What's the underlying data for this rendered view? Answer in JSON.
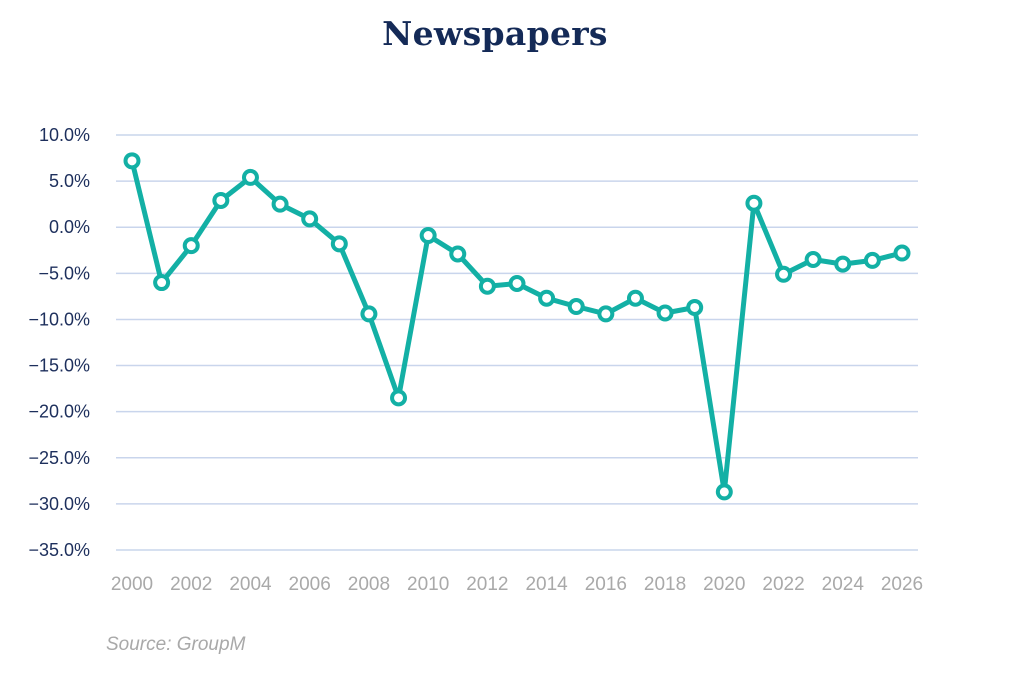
{
  "chart_data": {
    "type": "line",
    "title": "Newspapers",
    "xlabel": "",
    "ylabel": "",
    "x": [
      2000,
      2001,
      2002,
      2003,
      2004,
      2005,
      2006,
      2007,
      2008,
      2009,
      2010,
      2011,
      2012,
      2013,
      2014,
      2015,
      2016,
      2017,
      2018,
      2019,
      2020,
      2021,
      2022,
      2023,
      2024,
      2025,
      2026
    ],
    "x_tick_labels": [
      "2000",
      "2002",
      "2004",
      "2006",
      "2008",
      "2010",
      "2012",
      "2014",
      "2016",
      "2018",
      "2020",
      "2022",
      "2024",
      "2026"
    ],
    "y_tick_labels": [
      "10.0%",
      "5.0%",
      "0.0%",
      "−5.0%",
      "−10.0%",
      "−15.0%",
      "−20.0%",
      "−25.0%",
      "−30.0%",
      "−35.0%"
    ],
    "y_ticks": [
      10,
      5,
      0,
      -5,
      -10,
      -15,
      -20,
      -25,
      -30,
      -35
    ],
    "ylim": [
      -35,
      10
    ],
    "grid": true,
    "series": [
      {
        "values": [
          7.2,
          -6.0,
          -2.0,
          2.9,
          5.4,
          2.5,
          0.9,
          -1.8,
          -9.4,
          -18.5,
          -0.9,
          -2.9,
          -6.4,
          -6.1,
          -7.7,
          -8.6,
          -9.4,
          -7.7,
          -9.3,
          -8.7,
          -28.7,
          2.6,
          -5.1,
          -3.5,
          -4.0,
          -3.6,
          -2.8
        ],
        "color": "#13b0a5"
      }
    ],
    "gridline_color": "#c9d5ec",
    "source": "Source: GroupM"
  }
}
